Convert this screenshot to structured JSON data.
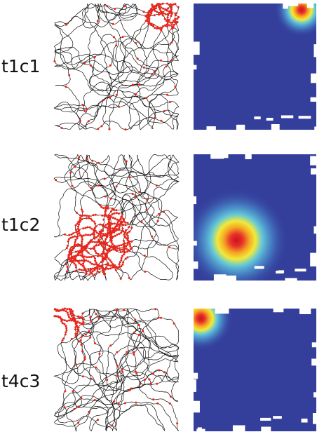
{
  "rows": [
    {
      "label": "t1c1"
    },
    {
      "label": "t1c2"
    },
    {
      "label": "t4c3"
    }
  ]
}
